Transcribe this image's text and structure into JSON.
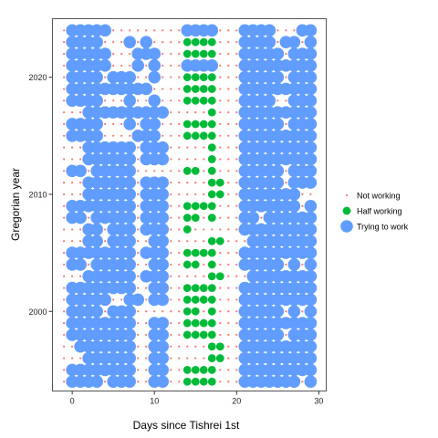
{
  "chart_data": {
    "type": "scatter",
    "title": "",
    "xlabel": "Days since Tishrei 1st",
    "ylabel": "Gregorian year",
    "xlim": [
      -2.4,
      30.9
    ],
    "ylim": [
      1993.2,
      2025.0
    ],
    "x_ticks": [
      0,
      10,
      20,
      30
    ],
    "y_ticks": [
      2000,
      2010,
      2020
    ],
    "grid": false,
    "legend_position": "right",
    "x_range": [
      -1,
      29
    ],
    "year_range": [
      1994,
      2024
    ],
    "series": [
      {
        "name": "Not working",
        "code": 0,
        "color": "#F8766D"
      },
      {
        "name": "Half working",
        "code": 1,
        "color": "#00BA38"
      },
      {
        "name": "Trying to work",
        "code": 2,
        "color": "#619CFF"
      }
    ],
    "rows": [
      {
        "year": 2024,
        "values": "0222220000000002222000222200022"
      },
      {
        "year": 2023,
        "values": "0222200020200001111000222202202"
      },
      {
        "year": 2022,
        "values": "0222220002220001111000222220222"
      },
      {
        "year": 2021,
        "values": "0222220002020002222000222222222"
      },
      {
        "year": 2020,
        "values": "0222202220020001111000222220222"
      },
      {
        "year": 2019,
        "values": "0222222222200001111000222222222"
      },
      {
        "year": 2018,
        "values": "0222200020020001111000222200222"
      },
      {
        "year": 2017,
        "values": "0002222222222000001000222222222"
      },
      {
        "year": 2016,
        "values": "0222200020220001111000222220222"
      },
      {
        "year": 2015,
        "values": "0222200002220001111000222222222"
      },
      {
        "year": 2014,
        "values": "0002222220222000001000222222222"
      },
      {
        "year": 2013,
        "values": "0002222220222000001000222222222"
      },
      {
        "year": 2012,
        "values": "0220222220000001101000222220222"
      },
      {
        "year": 2011,
        "values": "0002222220222000001100222220222"
      },
      {
        "year": 2010,
        "values": "0002222220222000001100222222200"
      },
      {
        "year": 2009,
        "values": "0222222220222001111000222222202"
      },
      {
        "year": 2008,
        "values": "0220222220222001101000220222222"
      },
      {
        "year": 2007,
        "values": "0002202220222001000000222222222"
      },
      {
        "year": 2006,
        "values": "0002202220022000001100022222222"
      },
      {
        "year": 2005,
        "values": "0222222220222001111000222222222"
      },
      {
        "year": 2004,
        "values": "0220222220022001101000222220202"
      },
      {
        "year": 2003,
        "values": "0002222220222000001100022222222"
      },
      {
        "year": 2002,
        "values": "0222222220022001111000222222222"
      },
      {
        "year": 2001,
        "values": "0222220022022001111000222222222"
      },
      {
        "year": 2000,
        "values": "0222202220000001101000222220202"
      },
      {
        "year": 1999,
        "values": "0222222220022001111000222222222"
      },
      {
        "year": 1998,
        "values": "0222222220022001111000222220222"
      },
      {
        "year": 1997,
        "values": "0022222220022000001100222222222"
      },
      {
        "year": 1996,
        "values": "0002222220022000001100222222222"
      },
      {
        "year": 1995,
        "values": "0222222220022001111000222222222"
      },
      {
        "year": 1994,
        "values": "0222202220022001111000222222202"
      }
    ]
  }
}
